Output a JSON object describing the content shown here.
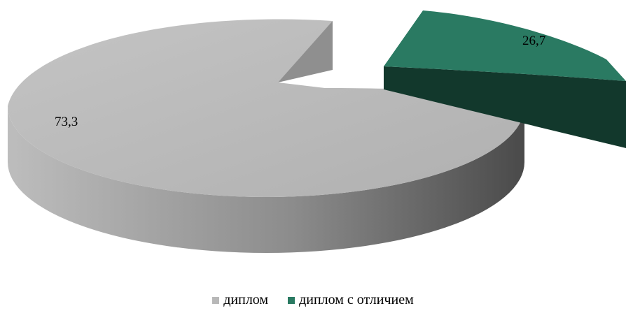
{
  "chart_data": {
    "type": "pie",
    "style": "3d-exploded",
    "categories": [
      "диплом",
      "диплом с отличием"
    ],
    "values": [
      73.3,
      26.7
    ],
    "data_labels": [
      "73,3",
      "26,7"
    ],
    "colors": [
      "#b8b8b8",
      "#2a7a62"
    ],
    "legend_position": "bottom"
  }
}
